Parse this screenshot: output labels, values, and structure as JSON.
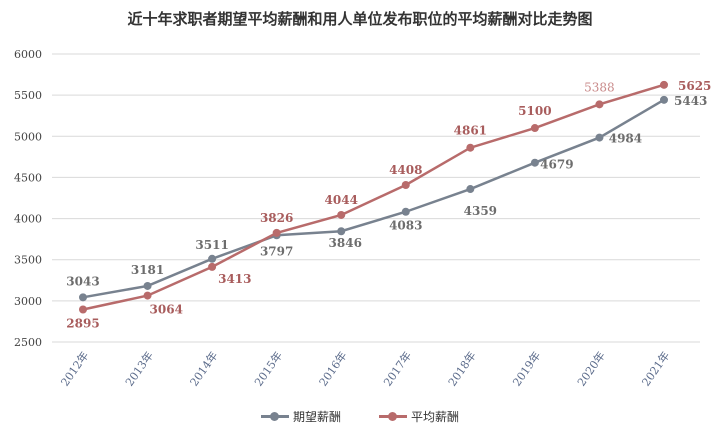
{
  "chart_data": {
    "type": "line",
    "title": "近十年求职者期望平均薪酬和用人单位发布职位的平均薪酬对比走势图",
    "categories": [
      "2012年",
      "2013年",
      "2014年",
      "2015年",
      "2016年",
      "2017年",
      "2018年",
      "2019年",
      "2020年",
      "2021年"
    ],
    "series": [
      {
        "name": "期望薪酬",
        "color": "#78828f",
        "values": [
          3043,
          3181,
          3511,
          3797,
          3846,
          4083,
          4359,
          4679,
          4984,
          5443
        ]
      },
      {
        "name": "平均薪酬",
        "color": "#b86b6b",
        "values": [
          2895,
          3064,
          3413,
          3826,
          4044,
          4408,
          4861,
          5100,
          5388,
          5625
        ]
      }
    ],
    "ylim": [
      2500,
      6000
    ],
    "yticks": [
      2500,
      3000,
      3500,
      4000,
      4500,
      5000,
      5500,
      6000
    ],
    "grid": true,
    "legend": "bottom",
    "xlabel": "",
    "ylabel": ""
  }
}
